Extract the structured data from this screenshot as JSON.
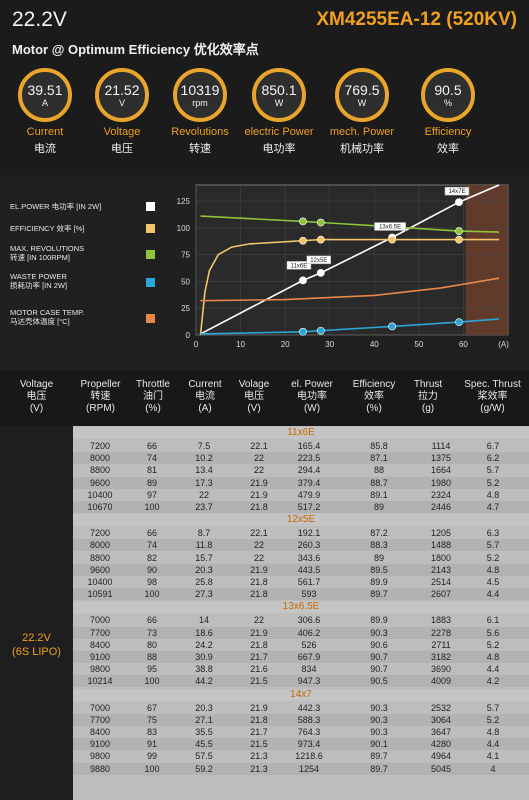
{
  "header": {
    "voltage": "22.2V",
    "subtitle": "Motor @ Optimum Efficiency  优化效率点",
    "model": "XM4255EA-12 (520KV)"
  },
  "metrics": [
    {
      "value": "39.51",
      "unit": "A",
      "en": "Current",
      "zh": "电流"
    },
    {
      "value": "21.52",
      "unit": "V",
      "en": "Voltage",
      "zh": "电压"
    },
    {
      "value": "10319",
      "unit": "rpm",
      "en": "Revolutions",
      "zh": "转速"
    },
    {
      "value": "850.1",
      "unit": "W",
      "en": "electric Power",
      "zh": "电功率"
    },
    {
      "value": "769.5",
      "unit": "W",
      "en": "mech. Power",
      "zh": "机械功率"
    },
    {
      "value": "90.5",
      "unit": "%",
      "en": "Efficiency",
      "zh": "效率"
    }
  ],
  "legend": [
    {
      "line1": "EL.POWER 电功率 [IN 2W]",
      "line2": "",
      "color": "#ffffff"
    },
    {
      "line1": "EFFICIENCY 效率 [%]",
      "line2": "",
      "color": "#f3c46a"
    },
    {
      "line1": "MAX. REVOLUTIONS",
      "line2": "转速 [IN 100RPM]",
      "color": "#8fc43a"
    },
    {
      "line1": "WASTE POWER",
      "line2": "损耗功率 [IN 2W]",
      "color": "#2aa6d8"
    },
    {
      "line1": "MOTOR CASE TEMP.",
      "line2": "马达壳体温度 [°C]",
      "color": "#e9874a"
    }
  ],
  "chart_data": {
    "type": "line",
    "xlim": [
      0,
      70
    ],
    "ylim": [
      0,
      140
    ],
    "xticks": [
      "0",
      "10",
      "20",
      "30",
      "40",
      "50",
      "60",
      "(A)"
    ],
    "yticks": [
      "0",
      "25",
      "50",
      "75",
      "100",
      "125"
    ],
    "annotations": [
      "11x6E",
      "12x5E",
      "13x6.5E",
      "14x7E"
    ],
    "grid": true,
    "series": [
      {
        "name": "EL.POWER 电功率 [IN 2W]",
        "color": "#ffffff",
        "x": [
          1,
          24,
          28,
          44,
          59,
          68
        ],
        "y": [
          1,
          51,
          58,
          91,
          124,
          140
        ]
      },
      {
        "name": "EFFICIENCY 效率 [%]",
        "color": "#f3c46a",
        "x": [
          1,
          2,
          3,
          5,
          8,
          12,
          24,
          28,
          44,
          59,
          68
        ],
        "y": [
          0,
          40,
          60,
          75,
          82,
          85,
          88,
          89,
          89,
          89,
          89
        ]
      },
      {
        "name": "MAX. REVOLUTIONS",
        "color": "#8fc43a",
        "x": [
          1,
          24,
          28,
          44,
          59,
          68
        ],
        "y": [
          111,
          106,
          105,
          101,
          97,
          96
        ]
      },
      {
        "name": "WASTE POWER",
        "color": "#2aa6d8",
        "x": [
          1,
          24,
          28,
          44,
          59,
          68
        ],
        "y": [
          1,
          3,
          4,
          8,
          12,
          15
        ]
      },
      {
        "name": "MOTOR CASE TEMP.",
        "color": "#e9874a",
        "x": [
          1,
          20,
          40,
          55,
          68
        ],
        "y": [
          32,
          33,
          37,
          44,
          53
        ]
      }
    ],
    "markers": [
      {
        "series": 0,
        "x": [
          24,
          28,
          44,
          59
        ]
      },
      {
        "series": 1,
        "x": [
          24,
          28,
          44,
          59
        ]
      },
      {
        "series": 2,
        "x": [
          24,
          28,
          44,
          59
        ]
      },
      {
        "series": 3,
        "x": [
          24,
          28,
          44,
          59
        ]
      }
    ]
  },
  "table": {
    "headers": [
      {
        "en": "Voltage",
        "zh": "电压",
        "unit": "(V)"
      },
      {
        "en": "Propeller",
        "zh": "转速",
        "unit": "(RPM)"
      },
      {
        "en": "Throttle",
        "zh": "油门",
        "unit": "(%)"
      },
      {
        "en": "Current",
        "zh": "电流",
        "unit": "(A)"
      },
      {
        "en": "Volage",
        "zh": "电压",
        "unit": "(V)"
      },
      {
        "en": "el. Power",
        "zh": "电功率",
        "unit": "(W)"
      },
      {
        "en": "Efficiency",
        "zh": "效率",
        "unit": "(%)"
      },
      {
        "en": "Thrust",
        "zh": "拉力",
        "unit": "(g)"
      },
      {
        "en": "Spec. Thrust",
        "zh": "桨效率",
        "unit": "(g/W)"
      }
    ],
    "voltage_label": "22.2V",
    "voltage_sub": "(6S LIPO)",
    "groups": [
      {
        "name": "11x6E",
        "rows": [
          [
            "7200",
            "66",
            "7.5",
            "22.1",
            "165.4",
            "85.8",
            "1114",
            "6.7"
          ],
          [
            "8000",
            "74",
            "10.2",
            "22",
            "223.5",
            "87.1",
            "1375",
            "6.2"
          ],
          [
            "8800",
            "81",
            "13.4",
            "22",
            "294.4",
            "88",
            "1664",
            "5.7"
          ],
          [
            "9600",
            "89",
            "17.3",
            "21.9",
            "379.4",
            "88.7",
            "1980",
            "5.2"
          ],
          [
            "10400",
            "97",
            "22",
            "21.9",
            "479.9",
            "89.1",
            "2324",
            "4.8"
          ],
          [
            "10670",
            "100",
            "23.7",
            "21.8",
            "517.2",
            "89",
            "2446",
            "4.7"
          ]
        ]
      },
      {
        "name": "12x5E",
        "rows": [
          [
            "7200",
            "66",
            "8.7",
            "22.1",
            "192.1",
            "87.2",
            "1205",
            "6.3"
          ],
          [
            "8000",
            "74",
            "11.8",
            "22",
            "260.3",
            "88.3",
            "1488",
            "5.7"
          ],
          [
            "8800",
            "82",
            "15.7",
            "22",
            "343.6",
            "89",
            "1800",
            "5.2"
          ],
          [
            "9600",
            "90",
            "20.3",
            "21.9",
            "443.5",
            "89.5",
            "2143",
            "4.8"
          ],
          [
            "10400",
            "98",
            "25.8",
            "21.8",
            "561.7",
            "89.9",
            "2514",
            "4.5"
          ],
          [
            "10591",
            "100",
            "27.3",
            "21.8",
            "593",
            "89.7",
            "2607",
            "4.4"
          ]
        ]
      },
      {
        "name": "13x6.5E",
        "rows": [
          [
            "7000",
            "66",
            "14",
            "22",
            "306.6",
            "89.9",
            "1883",
            "6.1"
          ],
          [
            "7700",
            "73",
            "18.6",
            "21.9",
            "406.2",
            "90.3",
            "2278",
            "5.6"
          ],
          [
            "8400",
            "80",
            "24.2",
            "21.8",
            "526",
            "90.6",
            "2711",
            "5.2"
          ],
          [
            "9100",
            "88",
            "30.9",
            "21.7",
            "667.9",
            "90.7",
            "3182",
            "4.8"
          ],
          [
            "9800",
            "95",
            "38.8",
            "21.6",
            "834",
            "90.7",
            "3690",
            "4.4"
          ],
          [
            "10214",
            "100",
            "44.2",
            "21.5",
            "947.3",
            "90.5",
            "4009",
            "4.2"
          ]
        ]
      },
      {
        "name": "14x7",
        "rows": [
          [
            "7000",
            "67",
            "20.3",
            "21.9",
            "442.3",
            "90.3",
            "2532",
            "5.7"
          ],
          [
            "7700",
            "75",
            "27.1",
            "21.8",
            "588.3",
            "90.3",
            "3064",
            "5.2"
          ],
          [
            "8400",
            "83",
            "35.5",
            "21.7",
            "764.3",
            "90.3",
            "3647",
            "4.8"
          ],
          [
            "9100",
            "91",
            "45.5",
            "21.5",
            "973.4",
            "90.1",
            "4280",
            "4.4"
          ],
          [
            "9800",
            "99",
            "57.5",
            "21.3",
            "1218.6",
            "89.7",
            "4964",
            "4.1"
          ],
          [
            "9880",
            "100",
            "59.2",
            "21.3",
            "1254",
            "89.7",
            "5045",
            "4"
          ]
        ]
      }
    ]
  }
}
